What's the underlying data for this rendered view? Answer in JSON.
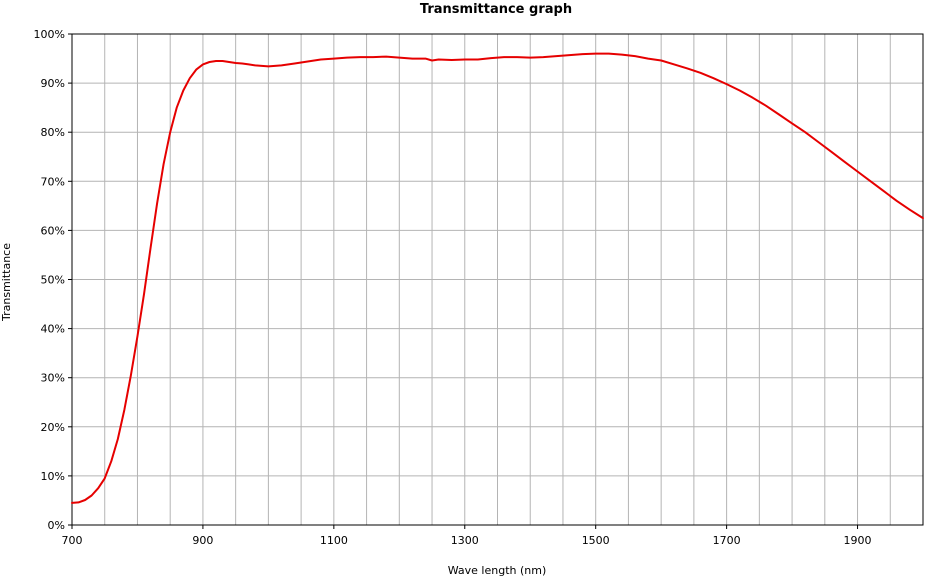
{
  "chart_data": {
    "type": "line",
    "title": "Transmittance graph",
    "xlabel": "Wave length (nm)",
    "ylabel": "Transmittance",
    "xlim": [
      700,
      2000
    ],
    "ylim": [
      0,
      100
    ],
    "grid": true,
    "x_ticks": [
      700,
      900,
      1100,
      1300,
      1500,
      1700,
      1900
    ],
    "x_tick_labels": [
      "700",
      "900",
      "1100",
      "1300",
      "1500",
      "1700",
      "1900"
    ],
    "y_ticks": [
      0,
      10,
      20,
      30,
      40,
      50,
      60,
      70,
      80,
      90,
      100
    ],
    "y_tick_labels": [
      "0%",
      "10%",
      "20%",
      "30%",
      "40%",
      "50%",
      "60%",
      "70%",
      "80%",
      "90%",
      "100%"
    ],
    "series": [
      {
        "color": "#e60000",
        "x": [
          700,
          710,
          720,
          730,
          740,
          750,
          760,
          770,
          780,
          790,
          800,
          810,
          820,
          830,
          840,
          850,
          860,
          870,
          880,
          890,
          900,
          910,
          920,
          930,
          940,
          950,
          960,
          970,
          980,
          990,
          1000,
          1020,
          1040,
          1060,
          1080,
          1100,
          1120,
          1140,
          1160,
          1180,
          1200,
          1220,
          1240,
          1250,
          1260,
          1280,
          1300,
          1320,
          1340,
          1360,
          1380,
          1400,
          1420,
          1440,
          1460,
          1480,
          1500,
          1520,
          1540,
          1560,
          1580,
          1600,
          1620,
          1640,
          1660,
          1680,
          1700,
          1720,
          1740,
          1760,
          1780,
          1800,
          1820,
          1840,
          1860,
          1880,
          1900,
          1920,
          1940,
          1960,
          1980,
          2000
        ],
        "y": [
          4.5,
          4.6,
          5.1,
          6.0,
          7.5,
          9.5,
          13.0,
          17.5,
          23.5,
          30.5,
          38.5,
          47.0,
          56.5,
          65.5,
          73.5,
          80.0,
          85.0,
          88.5,
          91.0,
          92.8,
          93.8,
          94.3,
          94.5,
          94.5,
          94.3,
          94.1,
          94.0,
          93.8,
          93.6,
          93.5,
          93.4,
          93.6,
          94.0,
          94.4,
          94.8,
          95.0,
          95.2,
          95.3,
          95.3,
          95.4,
          95.2,
          95.0,
          95.0,
          94.6,
          94.8,
          94.7,
          94.8,
          94.8,
          95.1,
          95.3,
          95.3,
          95.2,
          95.3,
          95.5,
          95.7,
          95.9,
          96.0,
          96.0,
          95.8,
          95.5,
          95.0,
          94.6,
          93.8,
          93.0,
          92.1,
          91.0,
          89.8,
          88.5,
          87.0,
          85.4,
          83.6,
          81.8,
          80.0,
          78.0,
          76.0,
          74.0,
          72.0,
          70.0,
          68.0,
          66.0,
          64.2,
          62.5
        ]
      }
    ]
  }
}
